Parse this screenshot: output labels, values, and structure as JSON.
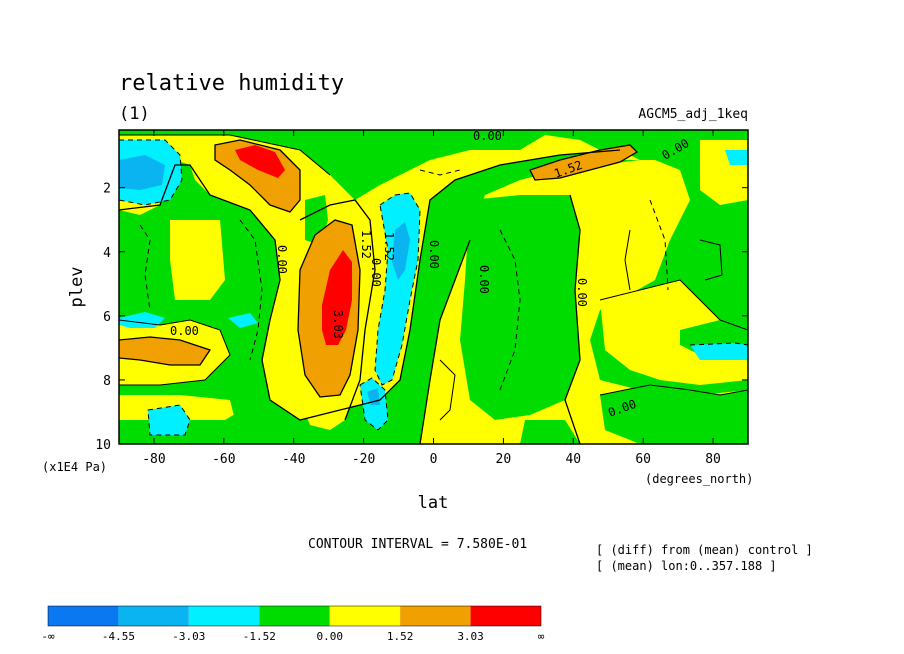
{
  "chart_data": {
    "type": "heatmap",
    "title": "relative humidity",
    "subtitle": "(1)",
    "run_label": "AGCM5_adj_1keq",
    "xlabel": "lat",
    "x_units": "(degrees_north)",
    "ylabel": "plev",
    "y_units": "(x1E4 Pa)",
    "xlim": [
      -90,
      90
    ],
    "ylim": [
      10,
      0.2
    ],
    "x_ticks": [
      "-80",
      "-60",
      "-40",
      "-20",
      "0",
      "20",
      "40",
      "60",
      "80"
    ],
    "y_ticks": [
      "2",
      "4",
      "6",
      "8",
      "10"
    ],
    "contour_interval_text": "CONTOUR INTERVAL = 7.580E-01",
    "notes": [
      "[ (diff) from (mean) control ]",
      "[ (mean) lon:0..357.188 ]"
    ],
    "contour_labels": [
      "0.00",
      "1.52",
      "3.03"
    ],
    "colorbar": {
      "labels": [
        "-∞",
        "-4.55",
        "-3.03",
        "-1.52",
        "0.00",
        "1.52",
        "3.03",
        "∞"
      ],
      "colors": [
        "#0a78f0",
        "#0ab4f0",
        "#00f0ff",
        "#00dc00",
        "#ffff00",
        "#f0a000",
        "#ff0000"
      ]
    },
    "field": {
      "fill_levels": [
        -4.55,
        -3.03,
        -1.52,
        0.0,
        1.52,
        3.03
      ],
      "features": [
        {
          "name": "upper-level moist maximum",
          "lat": -50,
          "plev": 1.0,
          "peak": 4.0
        },
        {
          "name": "subtropical moist maximum",
          "lat": -27,
          "plev": 5.8,
          "peak": 3.6
        },
        {
          "name": "upper-level moist maximum north",
          "lat": 45,
          "plev": 1.2,
          "peak": 2.0
        },
        {
          "name": "dry band south of equator",
          "lat": -12,
          "plev": 5.5,
          "peak": -2.8
        },
        {
          "name": "dry upper polar south",
          "lat": -85,
          "plev": 1.5,
          "peak": -3.4
        },
        {
          "name": "moist anomaly 70S lower",
          "lat": -72,
          "plev": 7.0,
          "peak": 2.2
        }
      ]
    }
  }
}
